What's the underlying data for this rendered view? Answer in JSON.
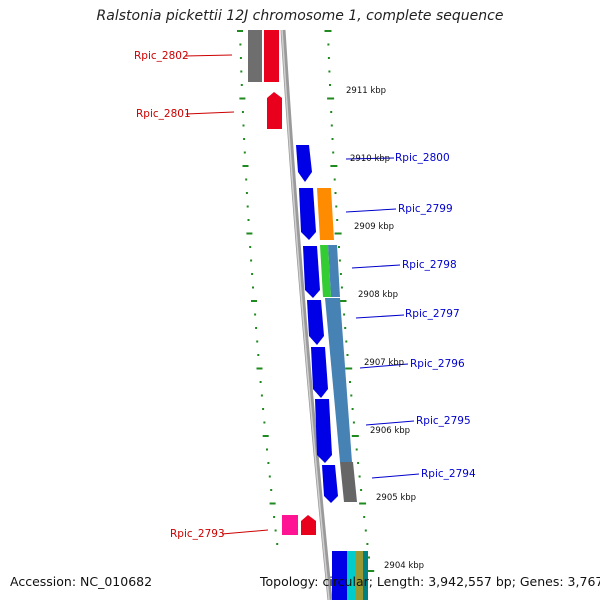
{
  "title": "Ralstonia pickettii 12J chromosome 1, complete sequence",
  "accession": "Accession: NC_010682",
  "topology": "Topology: circular; Length: 3,942,557 bp; Genes: 3,767",
  "colors": {
    "backbone": "#8a8a8a",
    "tick": "#1f8a1f",
    "label_red": "#cc0000",
    "label_blue": "#0000cc"
  },
  "kbp_labels": [
    "2911 kbp",
    "2910 kbp",
    "2909 kbp",
    "2908 kbp",
    "2907 kbp",
    "2906 kbp",
    "2905 kbp",
    "2904 kbp"
  ],
  "gene_labels": {
    "left": [
      "Rpic_2802",
      "Rpic_2801",
      "Rpic_2793"
    ],
    "right": [
      "Rpic_2800",
      "Rpic_2799",
      "Rpic_2798",
      "Rpic_2797",
      "Rpic_2796",
      "Rpic_2795",
      "Rpic_2794"
    ]
  }
}
